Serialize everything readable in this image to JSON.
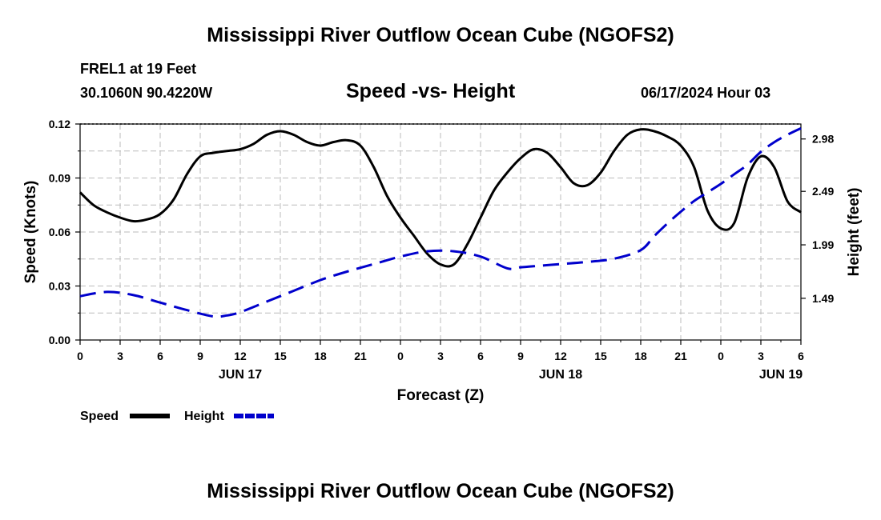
{
  "page": {
    "title": "Mississippi River Outflow Ocean Cube (NGOFS2)",
    "station_line": "FREL1 at 19 Feet",
    "coords_line": "30.1060N  90.4220W",
    "subtitle": "Speed -vs- Height",
    "datetime": "06/17/2024 Hour 03",
    "footer_title": "Mississippi River Outflow Ocean Cube (NGOFS2)"
  },
  "chart_data": {
    "type": "line",
    "title": "Speed -vs- Height",
    "xlabel": "Forecast (Z)",
    "ylabel": "Speed (Knots)",
    "y2label": "Height (feet)",
    "x_range": [
      0,
      54
    ],
    "ylim": [
      0,
      0.12
    ],
    "y2lim": [
      1.1,
      3.12
    ],
    "x_tick_values": [
      0,
      3,
      6,
      9,
      12,
      15,
      18,
      21,
      24,
      27,
      30,
      33,
      36,
      39,
      42,
      45,
      48,
      51,
      54
    ],
    "x_tick_labels": [
      "0",
      "3",
      "6",
      "9",
      "12",
      "15",
      "18",
      "21",
      "0",
      "3",
      "6",
      "9",
      "12",
      "15",
      "18",
      "21",
      "0",
      "3",
      "6"
    ],
    "date_labels": [
      {
        "x": 12,
        "label": "JUN 17"
      },
      {
        "x": 36,
        "label": "JUN 18"
      },
      {
        "x": 52.5,
        "label": "JUN 19"
      }
    ],
    "y_ticks": [
      0,
      0.03,
      0.06,
      0.09,
      0.12
    ],
    "y_tick_labels": [
      "0.00",
      "0.03",
      "0.06",
      "0.09",
      "0.12"
    ],
    "y2_ticks": [
      1.49,
      1.99,
      2.49,
      2.98
    ],
    "y2_tick_labels": [
      "1.49",
      "1.99",
      "2.49",
      "2.98"
    ],
    "grid": true,
    "legend_position": "bottom-left",
    "series": [
      {
        "name": "Speed",
        "axis": "left",
        "color": "#000000",
        "dash": "solid",
        "x": [
          0,
          1,
          2,
          3,
          4,
          5,
          6,
          7,
          8,
          9,
          10,
          11,
          12,
          13,
          14,
          15,
          16,
          17,
          18,
          19,
          20,
          21,
          22,
          23,
          24,
          25,
          26,
          27,
          28,
          29,
          30,
          31,
          32,
          33,
          34,
          35,
          36,
          37,
          38,
          39,
          40,
          41,
          42,
          43,
          44,
          45,
          46,
          47,
          48,
          49,
          50,
          51,
          52,
          53,
          54
        ],
        "values": [
          0.082,
          0.075,
          0.071,
          0.068,
          0.066,
          0.067,
          0.07,
          0.078,
          0.092,
          0.102,
          0.104,
          0.105,
          0.106,
          0.109,
          0.114,
          0.116,
          0.114,
          0.11,
          0.108,
          0.11,
          0.111,
          0.108,
          0.096,
          0.08,
          0.068,
          0.058,
          0.048,
          0.042,
          0.042,
          0.053,
          0.068,
          0.083,
          0.093,
          0.101,
          0.106,
          0.104,
          0.096,
          0.087,
          0.086,
          0.093,
          0.105,
          0.114,
          0.117,
          0.116,
          0.113,
          0.108,
          0.096,
          0.072,
          0.062,
          0.065,
          0.09,
          0.102,
          0.096,
          0.077,
          0.071
        ]
      },
      {
        "name": "Height",
        "axis": "right",
        "color": "#0000cc",
        "dash": "dashed",
        "x": [
          0,
          2,
          4,
          6,
          8,
          10,
          11,
          12,
          14,
          16,
          18,
          20,
          22,
          24,
          26,
          28,
          30,
          32,
          33,
          34,
          36,
          38,
          40,
          42,
          43,
          44,
          45,
          46,
          47,
          48,
          49,
          50,
          51,
          52,
          53,
          54
        ],
        "values": [
          1.51,
          1.55,
          1.52,
          1.45,
          1.38,
          1.32,
          1.33,
          1.36,
          1.46,
          1.56,
          1.66,
          1.74,
          1.81,
          1.88,
          1.93,
          1.93,
          1.88,
          1.77,
          1.78,
          1.79,
          1.81,
          1.83,
          1.86,
          1.94,
          2.07,
          2.19,
          2.3,
          2.4,
          2.48,
          2.56,
          2.65,
          2.74,
          2.86,
          2.95,
          3.02,
          3.08
        ]
      }
    ]
  }
}
